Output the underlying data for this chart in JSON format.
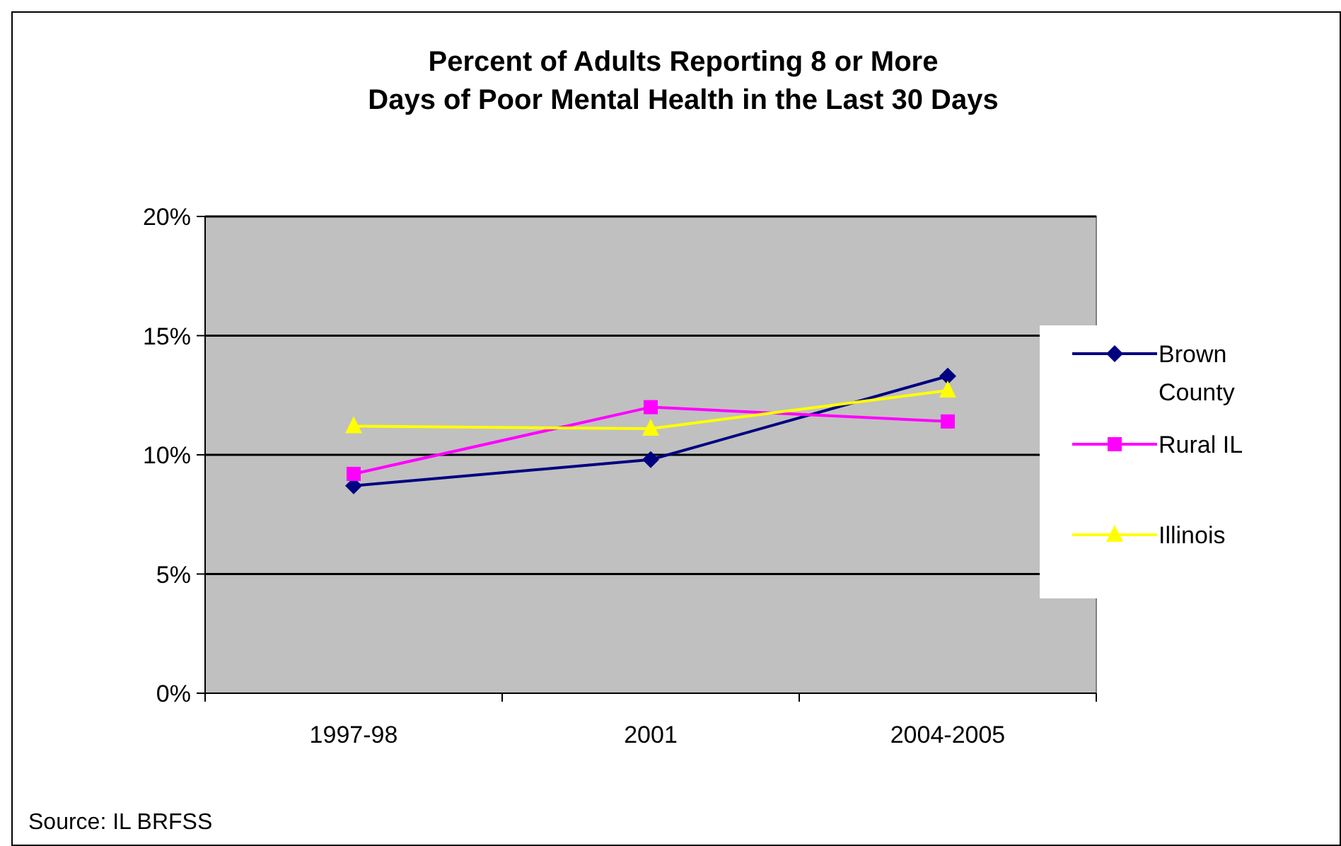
{
  "chart_data": {
    "type": "line",
    "title": "Percent of Adults Reporting 8 or More\nDays of Poor Mental Health in the Last 30 Days",
    "categories": [
      "1997-98",
      "2001",
      "2004-2005"
    ],
    "series": [
      {
        "name": "Brown County",
        "color": "#000080",
        "values": [
          8.7,
          9.8,
          13.3
        ],
        "marker": "diamond"
      },
      {
        "name": "Rural IL",
        "color": "#ff00ff",
        "values": [
          9.2,
          12.0,
          11.4
        ],
        "marker": "square"
      },
      {
        "name": "Illinois",
        "color": "#ffff00",
        "values": [
          11.2,
          11.1,
          12.7
        ],
        "marker": "triangle"
      }
    ],
    "ylim": [
      0,
      20
    ],
    "yticks": [
      {
        "value": 0,
        "label": "0%"
      },
      {
        "value": 5,
        "label": "5%"
      },
      {
        "value": 10,
        "label": "10%"
      },
      {
        "value": 15,
        "label": "15%"
      },
      {
        "value": 20,
        "label": "20%"
      }
    ],
    "grid": "y",
    "legend": "right",
    "annotations": [
      "Source: IL BRFSS"
    ]
  }
}
